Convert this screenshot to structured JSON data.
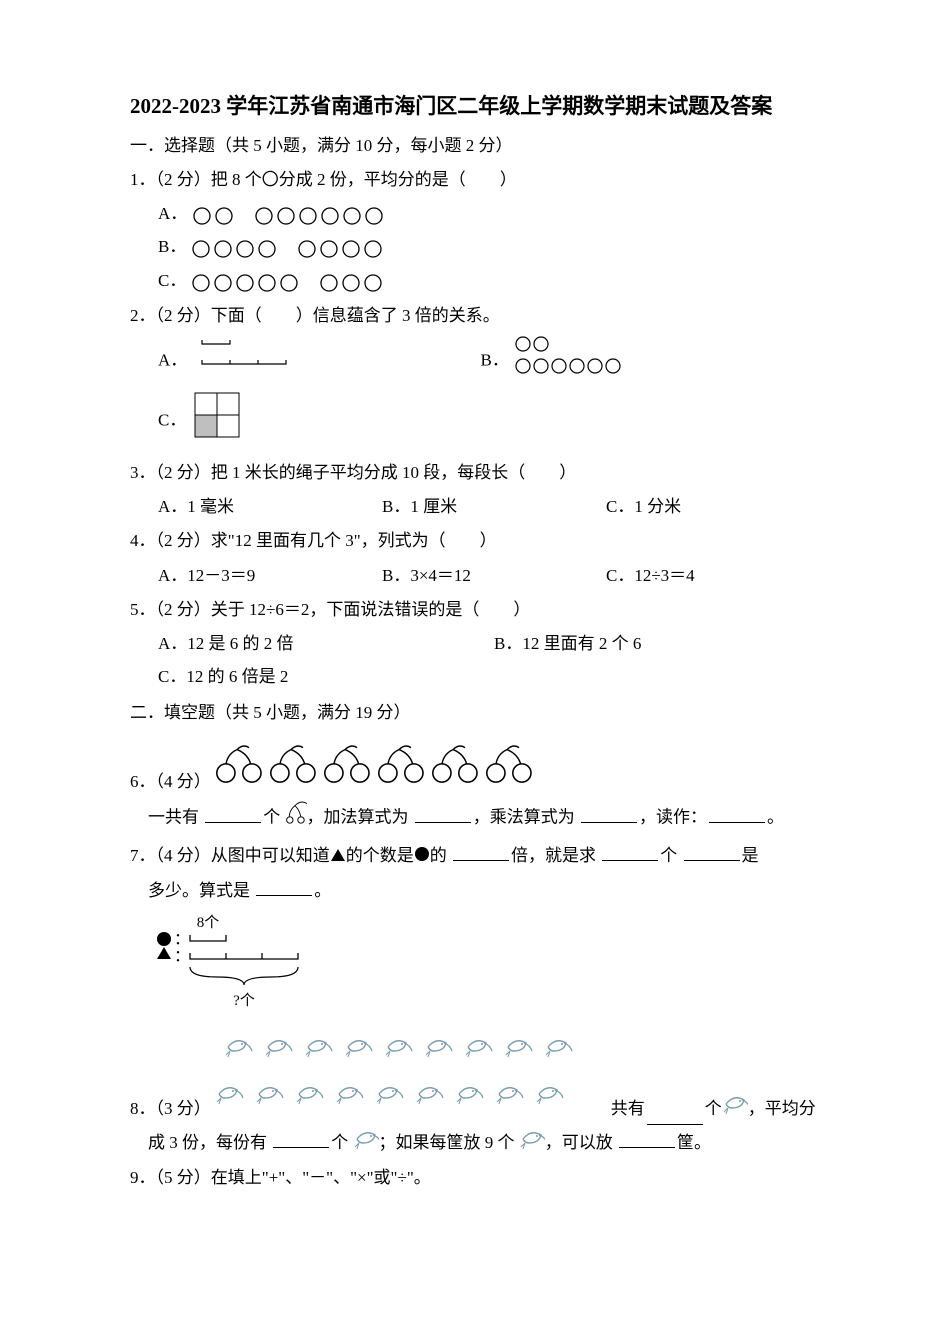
{
  "title": "2022-2023 学年江苏省南通市海门区二年级上学期数学期末试题及答案",
  "section1": {
    "head": "一．选择题（共 5 小题，满分 10 分，每小题 2 分）",
    "q1": {
      "stem": "1．（2 分）把 8 个〇分成 2 份，平均分的是（　　）",
      "optA_label": "A．",
      "optB_label": "B．",
      "optC_label": "C．",
      "optA": {
        "groups": [
          2,
          6
        ]
      },
      "optB": {
        "groups": [
          4,
          4
        ]
      },
      "optC": {
        "groups": [
          5,
          3
        ]
      },
      "circle_style": {
        "r": 8,
        "stroke": "#000000",
        "stroke_width": 1.3,
        "gap": 22,
        "group_gap": 18
      }
    },
    "q2": {
      "stem": "2．（2 分）下面（　　）信息蕴含了 3 倍的关系。",
      "optA_label": "A．",
      "optB_label": "B．",
      "optC_label": "C．",
      "optA_img": {
        "type": "bracket-pair",
        "top_segments": 1,
        "bottom_segments": 3,
        "seg_w": 28,
        "color": "#000000"
      },
      "optB_img": {
        "type": "circle-rows",
        "row1": 2,
        "row2": 6,
        "r": 7,
        "gap": 18,
        "color": "#000000"
      },
      "optC_img": {
        "type": "grid-shaded",
        "cols": 2,
        "rows": 2,
        "cell": 22,
        "shaded": [
          [
            1,
            0
          ]
        ],
        "fill": "#bfbfbf",
        "stroke": "#000000"
      }
    },
    "q3": {
      "stem": "3．（2 分）把 1 米长的绳子平均分成 10 段，每段长（　　）",
      "optA": "A．1 毫米",
      "optB": "B．1 厘米",
      "optC": "C．1 分米"
    },
    "q4": {
      "stem": "4．（2 分）求\"12 里面有几个 3\"，列式为（　　）",
      "optA": "A．12－3＝9",
      "optB": "B．3×4＝12",
      "optC": "C．12÷3＝4"
    },
    "q5": {
      "stem": "5．（2 分）关于 12÷6＝2，下面说法错误的是（　　）",
      "optA": "A．12 是 6 的 2 倍",
      "optB": "B．12 里面有 2 个 6",
      "optC": "C．12 的 6 倍是 2"
    }
  },
  "section2": {
    "head": "二．填空题（共 5 小题，满分 19 分）",
    "q6": {
      "label": "6．（4 分）",
      "cherries": {
        "count": 6,
        "pair_r": 7,
        "stem_color": "#000000",
        "fill": "#ffffff",
        "stroke": "#000000",
        "spacing": 54
      },
      "text_before_icon": "一共有 ",
      "text_after_icon": "，加法算式为 ",
      "text_mul": "，乘法算式为 ",
      "text_read": "，读作：",
      "text_end": "。",
      "unit_word": "个"
    },
    "q7": {
      "stem_a": "7．（4 分）从图中可以知道",
      "stem_b": "的个数是",
      "stem_c": "的 ",
      "stem_d": "倍，就是求 ",
      "stem_e": "个 ",
      "stem_f": "是",
      "line2a": "多少。算式是 ",
      "line2b": "。",
      "triangle": {
        "fill": "#000000",
        "size": 14
      },
      "circle": {
        "fill": "#000000",
        "r": 8
      },
      "diagram": {
        "label_top": "8个",
        "label_bottom": "?个",
        "top_seg_w": 36,
        "bottom_segments": 3,
        "bottom_seg_w": 36,
        "color": "#000000"
      }
    },
    "q8": {
      "label": "8．（3 分）",
      "shrimp": {
        "row1": 9,
        "row2": 9,
        "spacing": 40,
        "color": "#7a9cb0"
      },
      "text_a": "共有 ",
      "text_b": "个 ",
      "text_c": "，平均分",
      "line2a": "成 3 份，每份有 ",
      "line2b": "个 ",
      "line2c": "；如果每筐放 9 个 ",
      "line2d": "，可以放 ",
      "line2e": "筐。"
    },
    "q9": {
      "stem": "9．（5 分）在填上\"+\"、\"－\"、\"×\"或\"÷\"。"
    }
  },
  "colors": {
    "text": "#000000",
    "background": "#ffffff",
    "shrimp": "#7a9cb0",
    "grid_shade": "#bfbfbf"
  }
}
